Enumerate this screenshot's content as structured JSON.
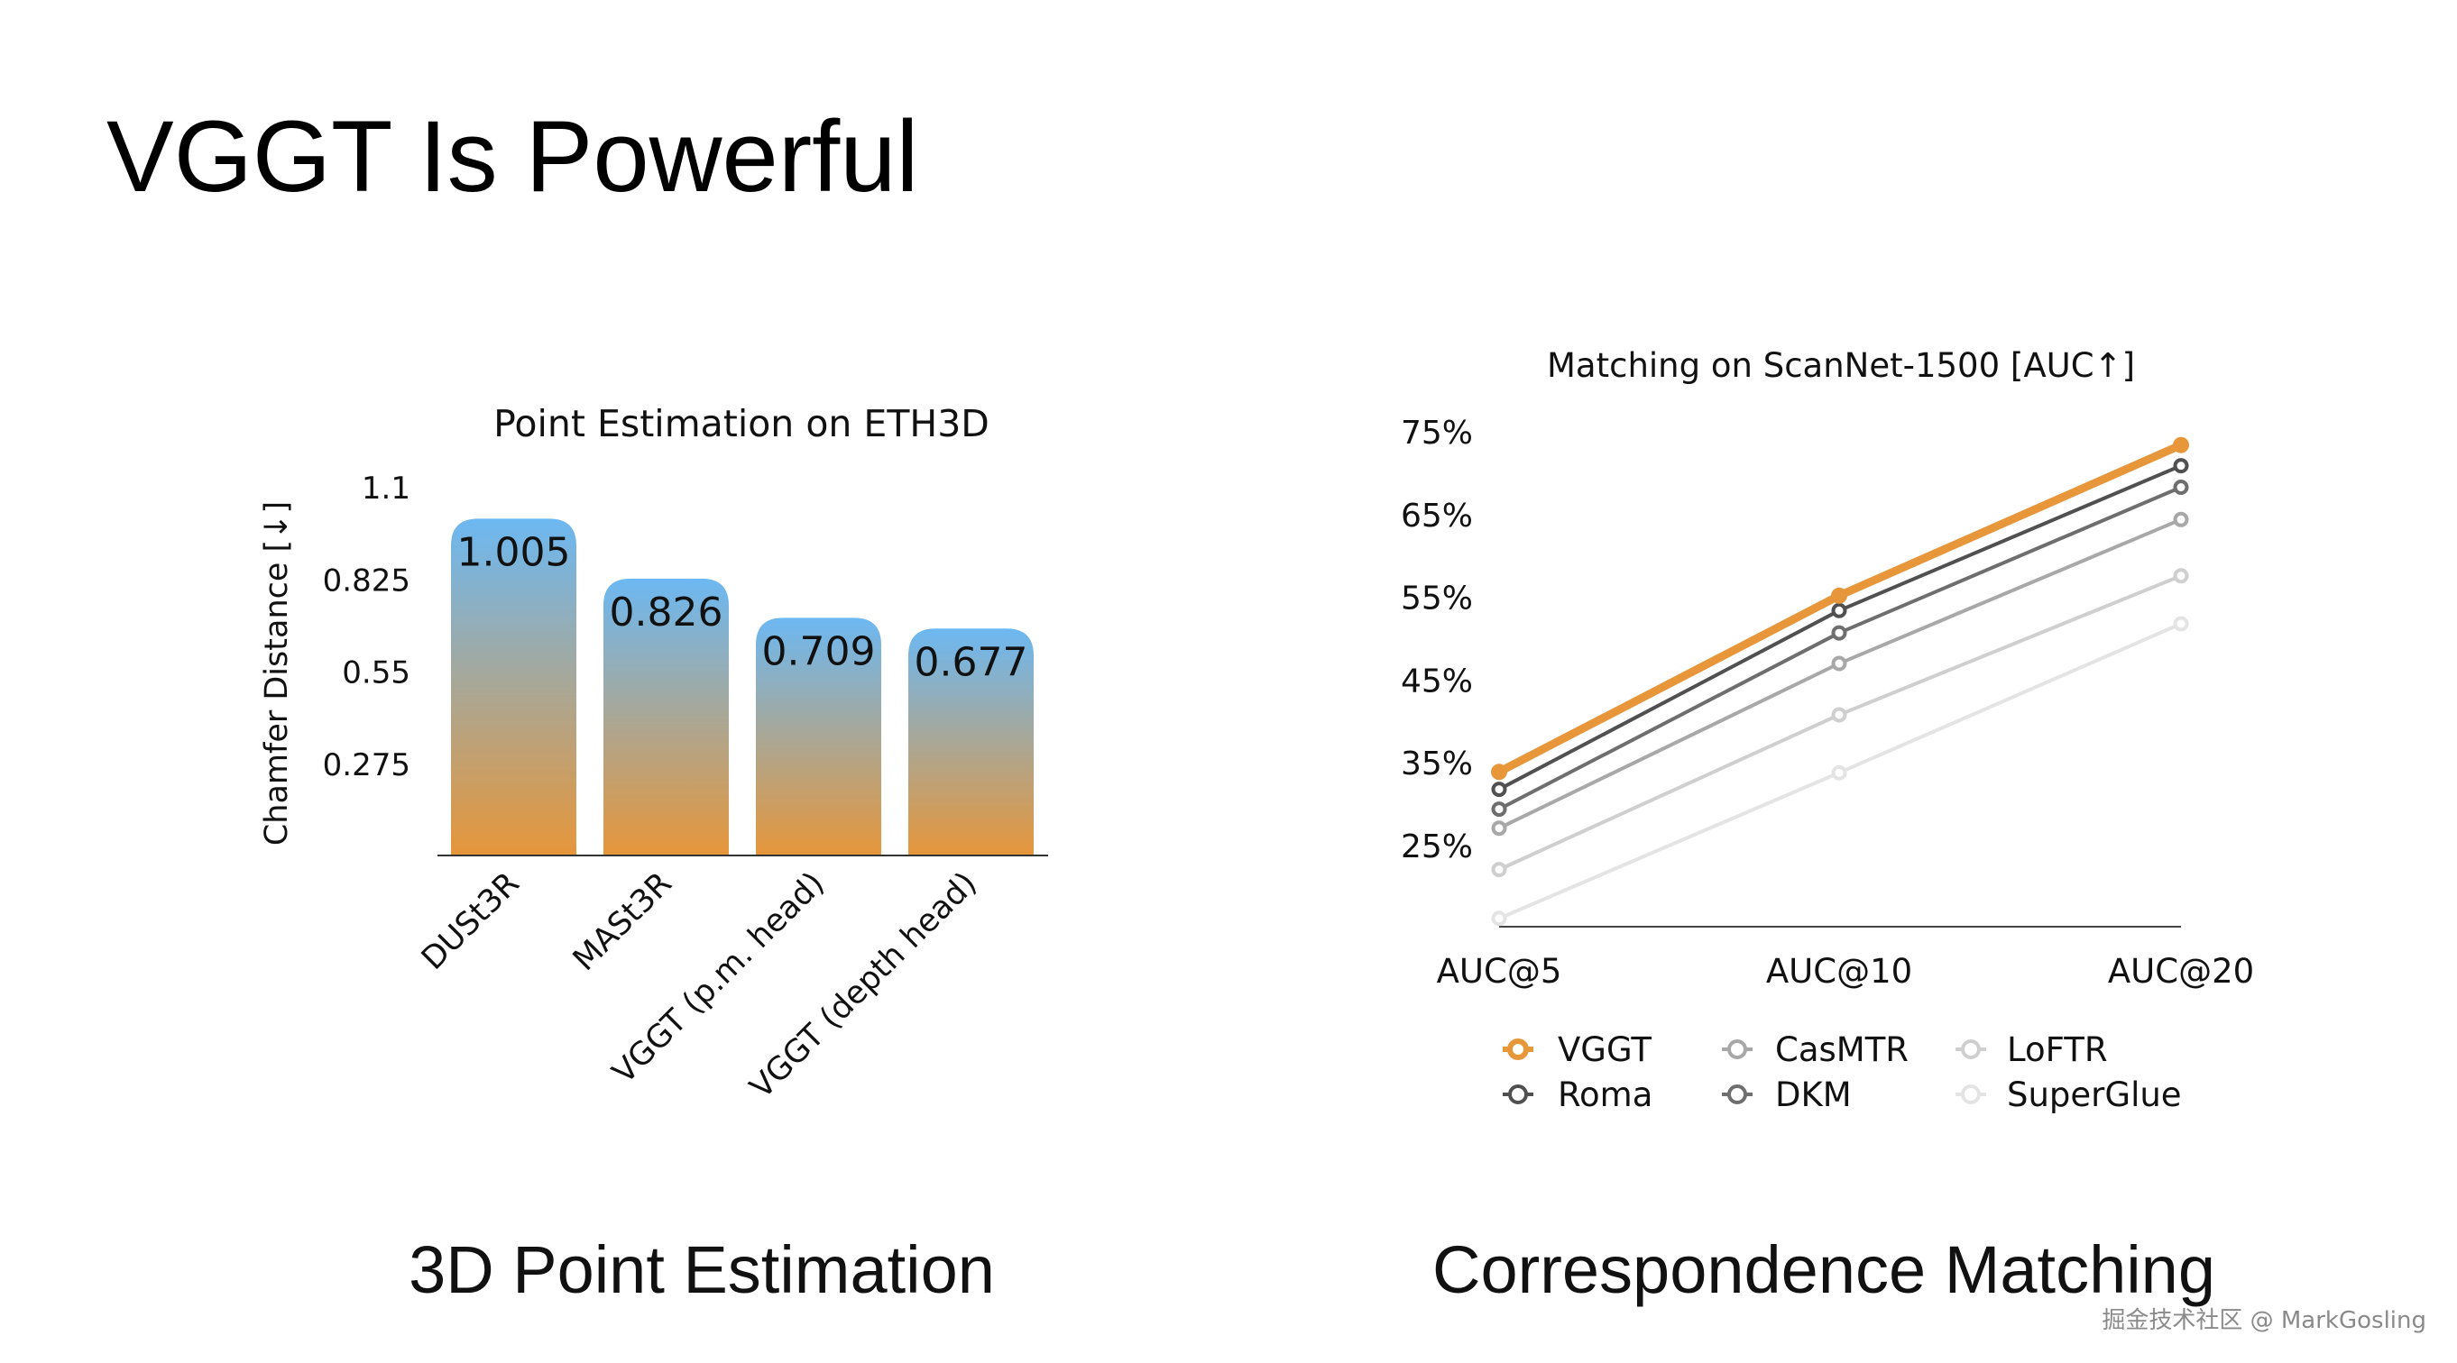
{
  "slide": {
    "title": "VGGT Is Powerful",
    "caption_left": "3D Point Estimation",
    "caption_right": "Correspondence Matching",
    "watermark": "掘金技术社区 @ MarkGosling"
  },
  "chart_data": [
    {
      "type": "bar",
      "title": "Point Estimation on ETH3D",
      "ylabel": "Chamfer Distance  [↓]",
      "xlabel": "",
      "categories": [
        "DUSt3R",
        "MASt3R",
        "VGGT (p.m. head)",
        "VGGT (depth head)"
      ],
      "values": [
        1.005,
        0.826,
        0.709,
        0.677
      ],
      "data_labels": [
        "1.005",
        "0.826",
        "0.709",
        "0.677"
      ],
      "yticks": [
        "1.1",
        "0.825",
        "0.55",
        "0.275"
      ],
      "ylim": [
        0,
        1.1
      ],
      "grid": false,
      "colors": {
        "bar_top": "#6cb8f2",
        "bar_bottom": "#e6963a"
      }
    },
    {
      "type": "line",
      "title": "Matching on ScanNet-1500 [AUC↑]",
      "xlabel": "",
      "ylabel": "",
      "categories": [
        "AUC@5",
        "AUC@10",
        "AUC@20"
      ],
      "yticks": [
        "75%",
        "65%",
        "55%",
        "45%",
        "35%",
        "25%"
      ],
      "ylim": [
        15.3,
        75
      ],
      "grid": false,
      "legend_position": "bottom",
      "series": [
        {
          "name": "SuperGlue",
          "values": [
            16.2,
            33.8,
            51.8
          ],
          "color": "#e4e4e4"
        },
        {
          "name": "LoFTR",
          "values": [
            22.1,
            40.8,
            57.6
          ],
          "color": "#cfcfcf"
        },
        {
          "name": "CasMTR",
          "values": [
            27.1,
            47.0,
            64.4
          ],
          "color": "#a8a8a8"
        },
        {
          "name": "DKM",
          "values": [
            29.4,
            50.7,
            68.3
          ],
          "color": "#6e6e6e"
        },
        {
          "name": "Roma",
          "values": [
            31.8,
            53.4,
            70.9
          ],
          "color": "#505050"
        },
        {
          "name": "VGGT",
          "values": [
            33.9,
            55.2,
            73.4
          ],
          "color": "#e8963a"
        }
      ],
      "legend_order": [
        "VGGT",
        "Roma",
        "CasMTR",
        "DKM",
        "LoFTR",
        "SuperGlue"
      ]
    }
  ]
}
